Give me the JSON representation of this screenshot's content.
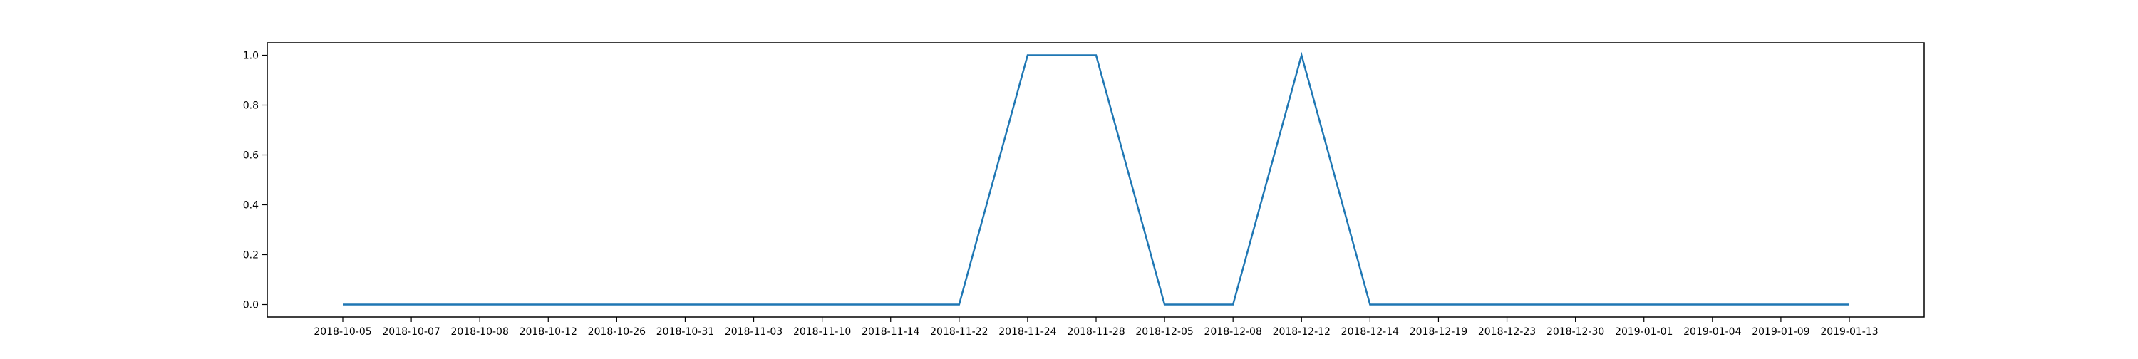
{
  "chart_data": {
    "type": "line",
    "title": "",
    "xlabel": "",
    "ylabel": "",
    "categories": [
      "2018-10-05",
      "2018-10-07",
      "2018-10-08",
      "2018-10-12",
      "2018-10-26",
      "2018-10-31",
      "2018-11-03",
      "2018-11-10",
      "2018-11-14",
      "2018-11-22",
      "2018-11-24",
      "2018-11-28",
      "2018-12-05",
      "2018-12-08",
      "2018-12-12",
      "2018-12-14",
      "2018-12-19",
      "2018-12-23",
      "2018-12-30",
      "2019-01-01",
      "2019-01-04",
      "2019-01-09",
      "2019-01-13"
    ],
    "series": [
      {
        "values": [
          0,
          0,
          0,
          0,
          0,
          0,
          0,
          0,
          0,
          0,
          1,
          1,
          0,
          0,
          1,
          0,
          0,
          0,
          0,
          0,
          0,
          0,
          0
        ],
        "color": "#1f77b4"
      }
    ],
    "ylim": [
      -0.05,
      1.05
    ],
    "yticks": [
      0.0,
      0.2,
      0.4,
      0.6,
      0.8,
      1.0
    ],
    "ytick_labels": [
      "0.0",
      "0.2",
      "0.4",
      "0.6",
      "0.8",
      "1.0"
    ],
    "grid": false,
    "legend": "none"
  }
}
